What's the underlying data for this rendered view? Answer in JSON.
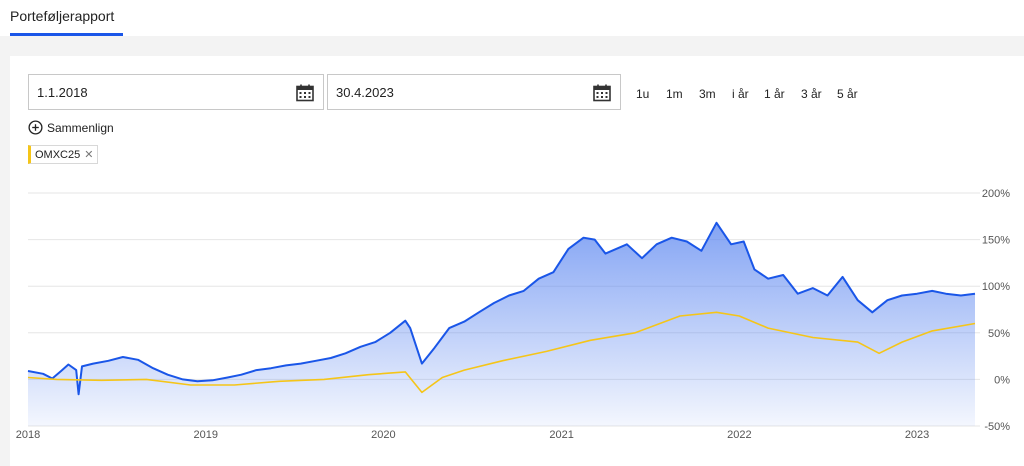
{
  "header": {
    "tab_label": "Porteføljerapport"
  },
  "controls": {
    "start_date": "1.1.2018",
    "end_date": "30.4.2023",
    "ranges": [
      "1u",
      "1m",
      "3m",
      "i år",
      "1 år",
      "3 år",
      "5 år"
    ],
    "compare_label": "Sammenlign",
    "chip_label": "OMXC25"
  },
  "colors": {
    "portfolio": "#1a56e8",
    "benchmark": "#f5c518",
    "accent": "#1a56e8"
  },
  "icons": {
    "calendar": "calendar-icon",
    "compare": "plus-circle-icon",
    "remove": "close-icon"
  },
  "chart_data": {
    "type": "area",
    "x_ticks": [
      "2018",
      "2019",
      "2020",
      "2021",
      "2022",
      "2023"
    ],
    "y_ticks": [
      "200%",
      "150%",
      "100%",
      "50%",
      "0%",
      "-50%"
    ],
    "ylim": [
      -50,
      200
    ],
    "xlim": [
      "2018-01-01",
      "2023-04-30"
    ],
    "series": [
      {
        "name": "",
        "color": "#1a56e8",
        "filled": true,
        "points": [
          [
            "2018-01-01",
            9
          ],
          [
            "2018-02-01",
            6
          ],
          [
            "2018-02-20",
            1
          ],
          [
            "2018-03-10",
            9
          ],
          [
            "2018-03-25",
            16
          ],
          [
            "2018-04-10",
            10
          ],
          [
            "2018-04-15",
            -16
          ],
          [
            "2018-04-22",
            14
          ],
          [
            "2018-05-15",
            17
          ],
          [
            "2018-06-15",
            20
          ],
          [
            "2018-07-15",
            24
          ],
          [
            "2018-08-15",
            21
          ],
          [
            "2018-09-15",
            12
          ],
          [
            "2018-10-15",
            5
          ],
          [
            "2018-11-15",
            0
          ],
          [
            "2018-12-15",
            -2
          ],
          [
            "2019-01-15",
            -1
          ],
          [
            "2019-02-15",
            2
          ],
          [
            "2019-03-15",
            5
          ],
          [
            "2019-04-15",
            10
          ],
          [
            "2019-05-15",
            12
          ],
          [
            "2019-06-15",
            15
          ],
          [
            "2019-07-15",
            17
          ],
          [
            "2019-08-15",
            20
          ],
          [
            "2019-09-15",
            23
          ],
          [
            "2019-10-15",
            28
          ],
          [
            "2019-11-15",
            35
          ],
          [
            "2019-12-15",
            40
          ],
          [
            "2020-01-15",
            50
          ],
          [
            "2020-02-15",
            63
          ],
          [
            "2020-02-25",
            55
          ],
          [
            "2020-03-20",
            17
          ],
          [
            "2020-04-15",
            34
          ],
          [
            "2020-05-15",
            55
          ],
          [
            "2020-06-15",
            62
          ],
          [
            "2020-07-15",
            72
          ],
          [
            "2020-08-15",
            82
          ],
          [
            "2020-09-15",
            90
          ],
          [
            "2020-10-15",
            95
          ],
          [
            "2020-11-15",
            108
          ],
          [
            "2020-12-15",
            115
          ],
          [
            "2021-01-15",
            140
          ],
          [
            "2021-02-15",
            152
          ],
          [
            "2021-03-10",
            150
          ],
          [
            "2021-04-01",
            135
          ],
          [
            "2021-05-15",
            145
          ],
          [
            "2021-06-15",
            130
          ],
          [
            "2021-07-15",
            145
          ],
          [
            "2021-08-15",
            152
          ],
          [
            "2021-09-15",
            148
          ],
          [
            "2021-10-15",
            138
          ],
          [
            "2021-11-15",
            168
          ],
          [
            "2021-12-15",
            145
          ],
          [
            "2022-01-10",
            148
          ],
          [
            "2022-02-01",
            118
          ],
          [
            "2022-03-01",
            108
          ],
          [
            "2022-04-01",
            112
          ],
          [
            "2022-05-01",
            92
          ],
          [
            "2022-06-01",
            98
          ],
          [
            "2022-07-01",
            90
          ],
          [
            "2022-08-01",
            110
          ],
          [
            "2022-09-01",
            85
          ],
          [
            "2022-10-01",
            72
          ],
          [
            "2022-11-01",
            85
          ],
          [
            "2022-12-01",
            90
          ],
          [
            "2023-01-01",
            92
          ],
          [
            "2023-02-01",
            95
          ],
          [
            "2023-03-01",
            92
          ],
          [
            "2023-04-01",
            90
          ],
          [
            "2023-04-30",
            92
          ]
        ]
      },
      {
        "name": "OMXC25",
        "color": "#f5c518",
        "filled": false,
        "points": [
          [
            "2018-01-01",
            2
          ],
          [
            "2018-03-01",
            0
          ],
          [
            "2018-06-01",
            -1
          ],
          [
            "2018-09-01",
            0
          ],
          [
            "2018-12-01",
            -6
          ],
          [
            "2019-03-01",
            -6
          ],
          [
            "2019-06-01",
            -2
          ],
          [
            "2019-09-01",
            0
          ],
          [
            "2019-12-01",
            5
          ],
          [
            "2020-02-15",
            8
          ],
          [
            "2020-03-20",
            -14
          ],
          [
            "2020-05-01",
            2
          ],
          [
            "2020-06-15",
            10
          ],
          [
            "2020-09-01",
            20
          ],
          [
            "2020-12-01",
            30
          ],
          [
            "2021-03-01",
            42
          ],
          [
            "2021-06-01",
            50
          ],
          [
            "2021-09-01",
            68
          ],
          [
            "2021-11-15",
            72
          ],
          [
            "2022-01-01",
            68
          ],
          [
            "2022-03-01",
            55
          ],
          [
            "2022-06-01",
            45
          ],
          [
            "2022-09-01",
            40
          ],
          [
            "2022-10-15",
            28
          ],
          [
            "2022-12-01",
            40
          ],
          [
            "2023-02-01",
            52
          ],
          [
            "2023-04-30",
            60
          ]
        ]
      }
    ],
    "grid": true,
    "legend": "none"
  }
}
